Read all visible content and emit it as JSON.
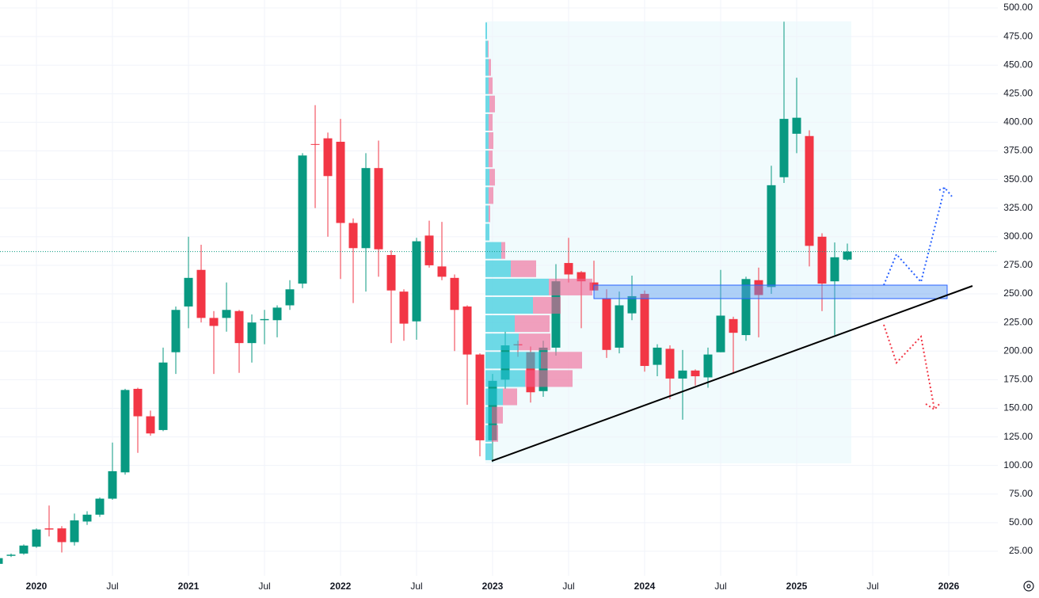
{
  "chart_data": {
    "type": "candlestick",
    "x": [
      "2019-10",
      "2019-11",
      "2019-12",
      "2020-01",
      "2020-02",
      "2020-03",
      "2020-04",
      "2020-05",
      "2020-06",
      "2020-07",
      "2020-08",
      "2020-09",
      "2020-10",
      "2020-11",
      "2020-12",
      "2021-01",
      "2021-02",
      "2021-03",
      "2021-04",
      "2021-05",
      "2021-06",
      "2021-07",
      "2021-08",
      "2021-09",
      "2021-10",
      "2021-11",
      "2021-12",
      "2022-01",
      "2022-02",
      "2022-03",
      "2022-04",
      "2022-05",
      "2022-06",
      "2022-07",
      "2022-08",
      "2022-09",
      "2022-10",
      "2022-11",
      "2022-12",
      "2023-01",
      "2023-02",
      "2023-03",
      "2023-04",
      "2023-05",
      "2023-06",
      "2023-07",
      "2023-08",
      "2023-09",
      "2023-10",
      "2023-11",
      "2023-12",
      "2024-01",
      "2024-02",
      "2024-03",
      "2024-04",
      "2024-05",
      "2024-06",
      "2024-07",
      "2024-08",
      "2024-09",
      "2024-10",
      "2024-11",
      "2024-12",
      "2025-01",
      "2025-02",
      "2025-03",
      "2025-04",
      "2025-05"
    ],
    "open": [
      14,
      21,
      23,
      29,
      45,
      45,
      33,
      51,
      57,
      71,
      94,
      167,
      143,
      131,
      199,
      239,
      271,
      229,
      229,
      235,
      207,
      227,
      227,
      240,
      259,
      381,
      386,
      383,
      312,
      290,
      360,
      284,
      252,
      226,
      301,
      274,
      264,
      239,
      197,
      122,
      175,
      206,
      199,
      165,
      203,
      277,
      269,
      260,
      246,
      203,
      233,
      250,
      188,
      202,
      176,
      183,
      177,
      199,
      228,
      214,
      262,
      256,
      352,
      390,
      388,
      300,
      261,
      280
    ],
    "high": [
      20,
      23,
      31,
      45,
      65,
      47,
      58,
      60,
      72,
      120,
      167,
      168,
      148,
      203,
      239,
      300,
      293,
      235,
      260,
      236,
      232,
      236,
      240,
      262,
      373,
      415,
      391,
      403,
      316,
      373,
      384,
      288,
      254,
      299,
      314,
      313,
      267,
      240,
      198,
      180,
      217,
      209,
      204,
      209,
      276,
      299,
      270,
      279,
      254,
      252,
      266,
      253,
      206,
      205,
      201,
      184,
      203,
      271,
      230,
      265,
      273,
      362,
      488,
      439,
      393,
      303,
      295,
      294
    ],
    "low": [
      13,
      20,
      22,
      28,
      38,
      24,
      30,
      48,
      55,
      70,
      92,
      111,
      126,
      130,
      180,
      220,
      225,
      180,
      217,
      181,
      190,
      206,
      212,
      236,
      255,
      325,
      300,
      263,
      242,
      252,
      265,
      207,
      209,
      210,
      273,
      262,
      200,
      153,
      108,
      103,
      167,
      195,
      155,
      160,
      196,
      260,
      220,
      251,
      194,
      198,
      227,
      182,
      178,
      158,
      140,
      170,
      168,
      199,
      181,
      209,
      212,
      250,
      347,
      373,
      274,
      235,
      214,
      279
    ],
    "close": [
      19,
      22,
      30,
      44,
      44,
      33,
      52,
      57,
      71,
      95,
      166,
      143,
      128,
      190,
      236,
      264,
      229,
      222,
      236,
      207,
      225,
      228,
      238,
      254,
      371,
      381,
      353,
      312,
      290,
      360,
      289,
      253,
      224,
      296,
      275,
      265,
      236,
      197,
      122,
      174,
      205,
      205,
      164,
      203,
      261,
      267,
      261,
      253,
      201,
      240,
      248,
      187,
      203,
      176,
      183,
      178,
      197,
      231,
      216,
      263,
      249,
      345,
      403,
      404,
      292,
      259,
      282,
      287
    ],
    "up_color": "#089981",
    "down_color": "#f23645",
    "ylim": [
      25,
      500
    ],
    "yticks": [
      {
        "value": 25,
        "label": "25.00"
      },
      {
        "value": 50,
        "label": "50.00"
      },
      {
        "value": 75,
        "label": "75.00"
      },
      {
        "value": 100,
        "label": "100.00"
      },
      {
        "value": 125,
        "label": "125.00"
      },
      {
        "value": 150,
        "label": "150.00"
      },
      {
        "value": 175,
        "label": "175.00"
      },
      {
        "value": 200,
        "label": "200.00"
      },
      {
        "value": 225,
        "label": "225.00"
      },
      {
        "value": 250,
        "label": "250.00"
      },
      {
        "value": 275,
        "label": "275.00"
      },
      {
        "value": 300,
        "label": "300.00"
      },
      {
        "value": 325,
        "label": "325.00"
      },
      {
        "value": 350,
        "label": "350.00"
      },
      {
        "value": 375,
        "label": "375.00"
      },
      {
        "value": 400,
        "label": "400.00"
      },
      {
        "value": 425,
        "label": "425.00"
      },
      {
        "value": 450,
        "label": "450.00"
      },
      {
        "value": 475,
        "label": "475.00"
      },
      {
        "value": 500,
        "label": "500.00"
      }
    ],
    "xticks": [
      {
        "value": "2020-01",
        "label": "2020"
      },
      {
        "value": "2020-07",
        "label": "Jul"
      },
      {
        "value": "2021-01",
        "label": "2021"
      },
      {
        "value": "2021-07",
        "label": "Jul"
      },
      {
        "value": "2022-01",
        "label": "2022"
      },
      {
        "value": "2022-07",
        "label": "Jul"
      },
      {
        "value": "2023-01",
        "label": "2023"
      },
      {
        "value": "2023-07",
        "label": "Jul"
      },
      {
        "value": "2024-01",
        "label": "2024"
      },
      {
        "value": "2024-07",
        "label": "Jul"
      },
      {
        "value": "2025-01",
        "label": "2025"
      },
      {
        "value": "2025-07",
        "label": "Jul"
      },
      {
        "value": "2026-01",
        "label": "2026"
      }
    ],
    "grid": true,
    "volume_profile": {
      "bins": [
        104,
        120,
        136,
        152,
        168,
        184,
        200,
        216,
        232,
        248,
        264,
        280,
        296,
        312,
        328,
        344,
        360,
        376,
        392,
        408,
        424,
        440,
        456,
        472,
        488
      ],
      "up": [
        8,
        8,
        8,
        22,
        50,
        70,
        42,
        37,
        60,
        80,
        32,
        20,
        5,
        4,
        4,
        5,
        4,
        4,
        4,
        5,
        4,
        4,
        3,
        2
      ],
      "down": [
        0,
        8,
        14,
        18,
        60,
        52,
        40,
        44,
        35,
        55,
        32,
        5,
        0,
        2,
        6,
        7,
        5,
        6,
        5,
        7,
        5,
        3,
        1,
        0
      ],
      "up_color": "#26c6da",
      "down_color": "#f06292"
    }
  }
}
